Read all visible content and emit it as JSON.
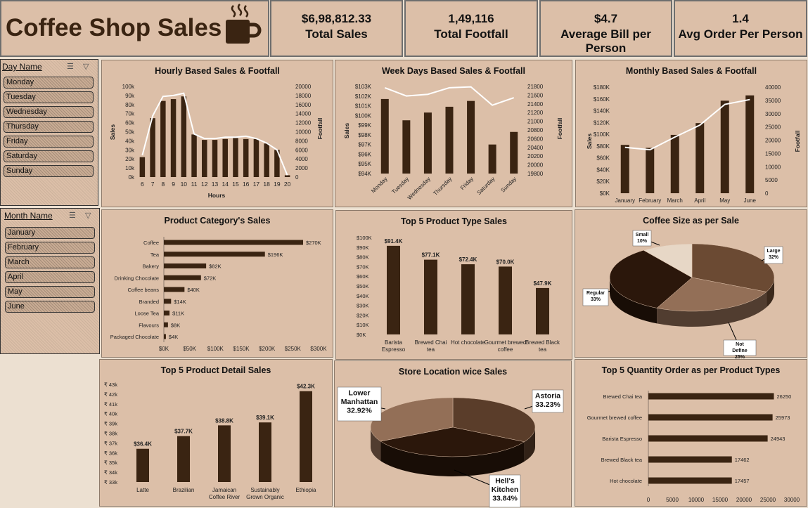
{
  "header": {
    "title": "Coffee Shop Sales"
  },
  "kpis": [
    {
      "value": "$6,98,812.33",
      "label": "Total Sales"
    },
    {
      "value": "1,49,116",
      "label": "Total Footfall"
    },
    {
      "value": "$4.7",
      "label": "Average Bill per Person"
    },
    {
      "value": "1.4",
      "label": "Avg Order Per Person"
    }
  ],
  "slicers": {
    "day": {
      "header": "Day Name",
      "items": [
        "Monday",
        "Tuesday",
        "Wednesday",
        "Thursday",
        "Friday",
        "Saturday",
        "Sunday"
      ]
    },
    "month": {
      "header": "Month Name",
      "items": [
        "January",
        "February",
        "March",
        "April",
        "May",
        "June"
      ]
    }
  },
  "colors": {
    "bar": "#3a2412",
    "line": "#ffffff",
    "panel": "#dcbfa8",
    "background": "#ece0d1"
  },
  "chart_data": [
    {
      "id": "hourly",
      "type": "bar+line",
      "title": "Hourly Based Sales & Footfall",
      "xlabel": "Hours",
      "ylabel": "Sales",
      "y2label": "Footfall",
      "categories": [
        "6",
        "7",
        "8",
        "9",
        "10",
        "11",
        "12",
        "13",
        "14",
        "15",
        "16",
        "17",
        "18",
        "19",
        "20"
      ],
      "series": [
        {
          "values": [
            22000,
            65000,
            84000,
            86000,
            89000,
            47000,
            41000,
            41000,
            42000,
            43000,
            42000,
            42000,
            37000,
            30000,
            2000
          ]
        },
        {
          "values": [
            4800,
            13500,
            17800,
            18000,
            18500,
            9500,
            8500,
            8500,
            8800,
            8800,
            9000,
            8500,
            7500,
            6000,
            400
          ]
        }
      ],
      "ylim": [
        0,
        100000
      ],
      "yticks": [
        "0k",
        "10k",
        "20k",
        "30k",
        "40k",
        "50k",
        "60k",
        "70k",
        "80k",
        "90k",
        "100k"
      ],
      "y2lim": [
        0,
        20000
      ],
      "y2ticks": [
        "0",
        "2000",
        "4000",
        "6000",
        "8000",
        "10000",
        "12000",
        "14000",
        "16000",
        "18000",
        "20000"
      ]
    },
    {
      "id": "weekdays",
      "type": "bar+line",
      "title": "Week Days Based Sales & Footfall",
      "ylabel": "Sales",
      "y2label": "Footfall",
      "categories": [
        "Monday",
        "Tuesday",
        "Wednesday",
        "Thursday",
        "Friday",
        "Saturday",
        "Sunday"
      ],
      "series": [
        {
          "values": [
            101700,
            99500,
            100300,
            100900,
            101500,
            97000,
            98300
          ]
        },
        {
          "values": [
            21770,
            21580,
            21620,
            21770,
            21790,
            21370,
            21540
          ]
        }
      ],
      "ylim": [
        94000,
        103000
      ],
      "yticks": [
        "$94K",
        "$95K",
        "$96K",
        "$97K",
        "$98K",
        "$99K",
        "$100K",
        "$101K",
        "$102K",
        "$103K"
      ],
      "y2lim": [
        19800,
        21800
      ],
      "y2ticks": [
        "19800",
        "20000",
        "20200",
        "20400",
        "20600",
        "20800",
        "21000",
        "21200",
        "21400",
        "21600",
        "21800"
      ]
    },
    {
      "id": "monthly",
      "type": "bar+line",
      "title": "Monthly Based Sales & Footfall",
      "ylabel": "Sales",
      "y2label": "Footfall",
      "categories": [
        "January",
        "February",
        "March",
        "April",
        "May",
        "June"
      ],
      "series": [
        {
          "values": [
            82000,
            77000,
            99000,
            119000,
            157000,
            166000
          ]
        },
        {
          "values": [
            17300,
            16400,
            21200,
            25700,
            33500,
            35300
          ]
        }
      ],
      "ylim": [
        0,
        180000
      ],
      "yticks": [
        "$0K",
        "$20K",
        "$40K",
        "$60K",
        "$80K",
        "$100K",
        "$120K",
        "$140K",
        "$160K",
        "$180K"
      ],
      "y2lim": [
        0,
        40000
      ],
      "y2ticks": [
        "0",
        "5000",
        "10000",
        "15000",
        "20000",
        "25000",
        "30000",
        "35000",
        "40000"
      ]
    },
    {
      "id": "category",
      "type": "hbar",
      "title": "Product Category's Sales",
      "categories": [
        "Coffee",
        "Tea",
        "Bakery",
        "Drinking Chocolate",
        "Coffee beans",
        "Branded",
        "Loose Tea",
        "Flavours",
        "Packaged Chocolate"
      ],
      "values": [
        270000,
        196000,
        82000,
        72000,
        40000,
        14000,
        11000,
        8000,
        4000
      ],
      "labels": [
        "$270K",
        "$196K",
        "$82K",
        "$72K",
        "$40K",
        "$14K",
        "$11K",
        "$8K",
        "$4K"
      ],
      "xlim": [
        0,
        300000
      ],
      "xticks": [
        "$0K",
        "$50K",
        "$100K",
        "$150K",
        "$200K",
        "$250K",
        "$300K"
      ]
    },
    {
      "id": "top5type",
      "type": "bar",
      "title": "Top 5 Product Type Sales",
      "categories": [
        "Barista Espresso",
        "Brewed Chai tea",
        "Hot chocolate",
        "Gourmet brewed coffee",
        "Brewed Black tea"
      ],
      "values": [
        91400,
        77100,
        72400,
        70000,
        47900
      ],
      "labels": [
        "$91.4K",
        "$77.1K",
        "$72.4K",
        "$70.0K",
        "$47.9K"
      ],
      "ylim": [
        0,
        100000
      ],
      "yticks": [
        "$0K",
        "$10K",
        "$20K",
        "$30K",
        "$40K",
        "$50K",
        "$60K",
        "$70K",
        "$80K",
        "$90K",
        "$100K"
      ]
    },
    {
      "id": "size",
      "type": "pie",
      "title": "Coffee Size as per Sale",
      "slices": [
        {
          "label": "Large",
          "pct": "32%",
          "value": 32,
          "color": "#6b4a33"
        },
        {
          "label": "Not Define",
          "pct": "25%",
          "value": 25,
          "color": "#936f57"
        },
        {
          "label": "Regular",
          "pct": "33%",
          "value": 33,
          "color": "#2b170b"
        },
        {
          "label": "Small",
          "pct": "10%",
          "value": 10,
          "color": "#e7d7c6"
        }
      ]
    },
    {
      "id": "top5detail",
      "type": "bar",
      "title": "Top 5 Product Detail Sales",
      "categories": [
        "Latte",
        "Brazilian",
        "Jamaican Coffee River",
        "Sustainably Grown Organic",
        "Ethiopia"
      ],
      "values": [
        36400,
        37700,
        38800,
        39100,
        42300
      ],
      "labels": [
        "$36.4K",
        "$37.7K",
        "$38.8K",
        "$39.1K",
        "$42.3K"
      ],
      "ylim": [
        33000,
        43000
      ],
      "yticks": [
        "₹ 33k",
        "₹ 34k",
        "₹ 35k",
        "₹ 36k",
        "₹ 37k",
        "₹ 38k",
        "₹ 39k",
        "₹ 40k",
        "₹ 41k",
        "₹ 42k",
        "₹ 43k"
      ]
    },
    {
      "id": "store",
      "type": "pie",
      "title": "Store Location wice Sales",
      "slices": [
        {
          "label": "Astoria",
          "pct": "33.23%",
          "value": 33.23,
          "color": "#5a3d2a"
        },
        {
          "label": "Hell's Kitchen",
          "pct": "33.84%",
          "value": 33.84,
          "color": "#2b170b"
        },
        {
          "label": "Lower Manhattan",
          "pct": "32.92%",
          "value": 32.92,
          "color": "#936f57"
        }
      ]
    },
    {
      "id": "qty",
      "type": "hbar",
      "title": "Top 5 Quantity Order as per Product Types",
      "categories": [
        "Brewed Chai tea",
        "Gourmet brewed coffee",
        "Barista Espresso",
        "Brewed Black tea",
        "Hot chocolate"
      ],
      "values": [
        26250,
        25973,
        24943,
        17462,
        17457
      ],
      "labels": [
        "26250",
        "25973",
        "24943",
        "17462",
        "17457"
      ],
      "xlim": [
        0,
        30000
      ],
      "xticks": [
        "0",
        "5000",
        "10000",
        "15000",
        "20000",
        "25000",
        "30000"
      ]
    }
  ]
}
